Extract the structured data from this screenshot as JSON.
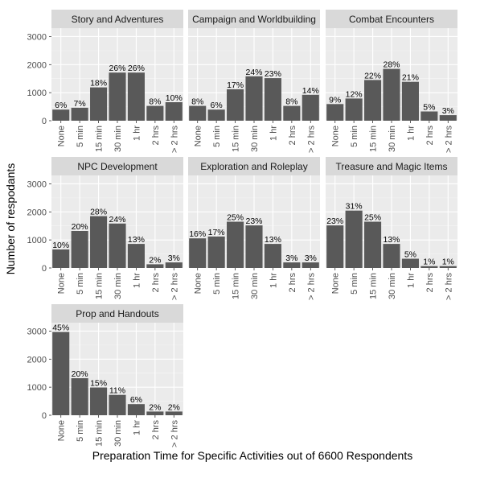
{
  "chart_data": {
    "type": "bar",
    "xlabel": "Preparation Time for Specific Activities out of 6600 Respondents",
    "ylabel": "Number of respodants",
    "ylim": [
      0,
      3300
    ],
    "yticks": [
      0,
      1000,
      2000,
      3000
    ],
    "categories": [
      "None",
      "5 min",
      "15 min",
      "30 min",
      "1 hr",
      "2 hrs",
      "> 2 hrs"
    ],
    "grid": true,
    "colors": {
      "bar": "#595959",
      "panel": "#ebebeb",
      "strip": "#d9d9d9",
      "grid_major": "#ffffff",
      "grid_minor": "#f5f5f5"
    },
    "panels": [
      {
        "title": "Story and Adventures",
        "values": [
          396,
          462,
          1188,
          1716,
          1716,
          528,
          660
        ],
        "labels": [
          "6%",
          "7%",
          "18%",
          "26%",
          "26%",
          "8%",
          "10%"
        ]
      },
      {
        "title": "Campaign and Worldbuilding",
        "values": [
          528,
          396,
          1122,
          1584,
          1518,
          528,
          924
        ],
        "labels": [
          "8%",
          "6%",
          "17%",
          "24%",
          "23%",
          "8%",
          "14%"
        ]
      },
      {
        "title": "Combat Encounters",
        "values": [
          594,
          792,
          1452,
          1848,
          1386,
          330,
          198
        ],
        "labels": [
          "9%",
          "12%",
          "22%",
          "28%",
          "21%",
          "5%",
          "3%"
        ]
      },
      {
        "title": "NPC Development",
        "values": [
          660,
          1320,
          1848,
          1584,
          858,
          132,
          198
        ],
        "labels": [
          "10%",
          "20%",
          "28%",
          "24%",
          "13%",
          "2%",
          "3%"
        ]
      },
      {
        "title": "Exploration and Roleplay",
        "values": [
          1056,
          1122,
          1650,
          1518,
          858,
          198,
          198
        ],
        "labels": [
          "16%",
          "17%",
          "25%",
          "23%",
          "13%",
          "3%",
          "3%"
        ]
      },
      {
        "title": "Treasure and Magic Items",
        "values": [
          1518,
          2046,
          1650,
          858,
          330,
          66,
          66
        ],
        "labels": [
          "23%",
          "31%",
          "25%",
          "13%",
          "5%",
          "1%",
          "1%"
        ]
      },
      {
        "title": "Prop and Handouts",
        "values": [
          2970,
          1320,
          990,
          726,
          396,
          132,
          132
        ],
        "labels": [
          "45%",
          "20%",
          "15%",
          "11%",
          "6%",
          "2%",
          "2%"
        ]
      }
    ]
  }
}
